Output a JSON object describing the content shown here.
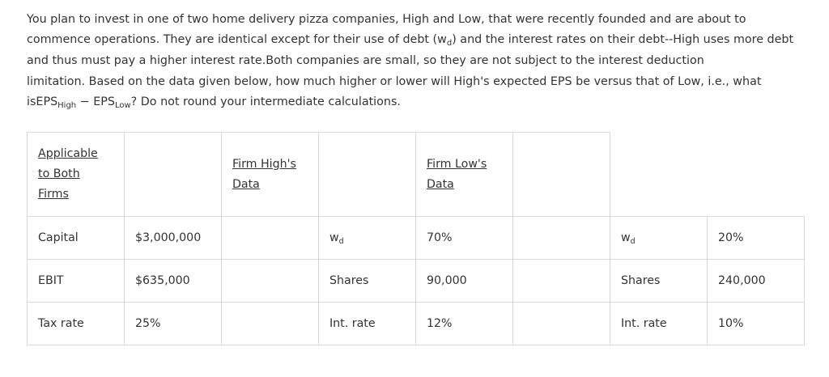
{
  "question": {
    "line1": "You plan to invest in one of two home delivery pizza companies, High and Low, that were recently founded and are about to",
    "line2a": "commence operations. They are identical except for their use of debt (w",
    "line2_sub": "d",
    "line2b": ") and the interest rates on their debt--High uses more debt",
    "line3": "and thus must pay a higher interest rate.Both companies are small, so they are not subject to the interest deduction",
    "line4": "limitation.  Based on the data given below, how much higher or lower will High's expected EPS be versus that of Low, i.e., what",
    "line5a": "isEPS",
    "line5_sub1": "High",
    "line5b": " − EPS",
    "line5_sub2": "Low",
    "line5c": "? Do not round your intermediate calculations."
  },
  "table": {
    "headers": {
      "both_line1": "Applicable",
      "both_line2": "to Both",
      "both_line3": "Firms",
      "high_line1": "Firm High's",
      "high_line2": "Data",
      "low_line1": "Firm Low's",
      "low_line2": "Data"
    },
    "rows": [
      {
        "label": "Capital",
        "value": "$3,000,000",
        "high_label": "w",
        "high_label_sub": "d",
        "high_value": "70%",
        "low_label": "w",
        "low_label_sub": "d",
        "low_value": "20%"
      },
      {
        "label": "EBIT",
        "value": "$635,000",
        "high_label": "Shares",
        "high_label_sub": "",
        "high_value": "90,000",
        "low_label": "Shares",
        "low_label_sub": "",
        "low_value": "240,000"
      },
      {
        "label": "Tax rate",
        "value": "25%",
        "high_label": "Int. rate",
        "high_label_sub": "",
        "high_value": "12%",
        "low_label": "Int. rate",
        "low_label_sub": "",
        "low_value": "10%"
      }
    ]
  }
}
